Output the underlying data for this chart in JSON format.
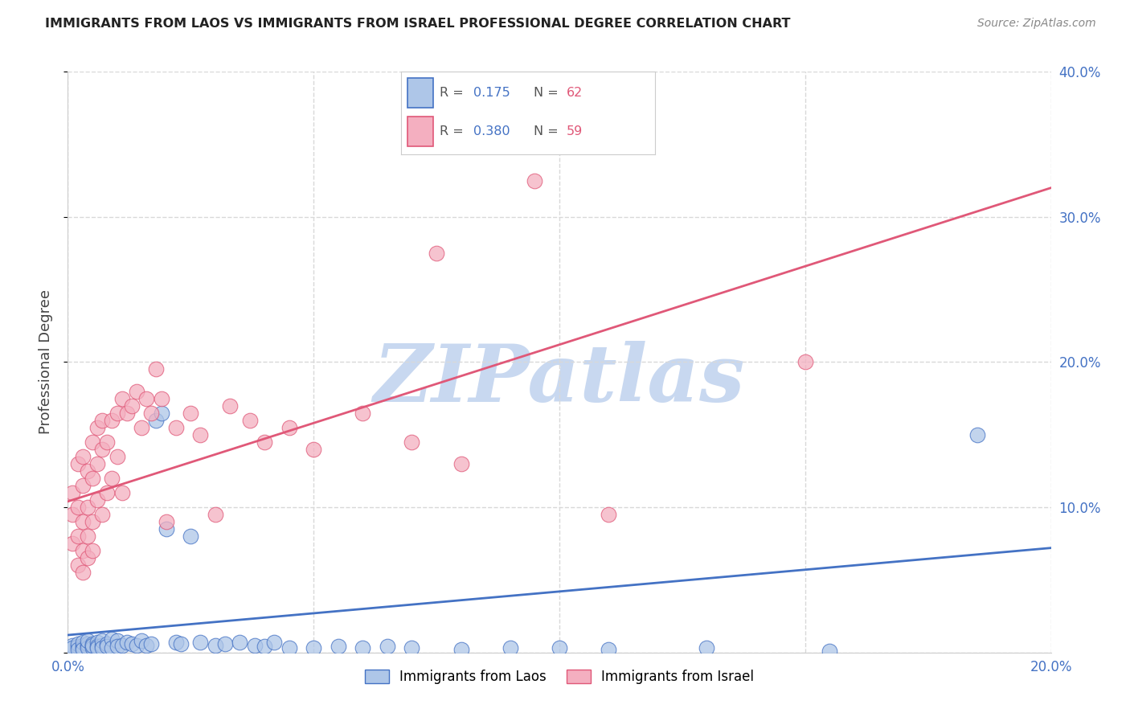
{
  "title": "IMMIGRANTS FROM LAOS VS IMMIGRANTS FROM ISRAEL PROFESSIONAL DEGREE CORRELATION CHART",
  "source": "Source: ZipAtlas.com",
  "ylabel": "Professional Degree",
  "xlim": [
    0.0,
    0.2
  ],
  "ylim": [
    0.0,
    0.4
  ],
  "background_color": "#ffffff",
  "grid_color": "#d8d8d8",
  "laos_fill_color": "#aec6e8",
  "laos_edge_color": "#4472c4",
  "israel_fill_color": "#f4afc0",
  "israel_edge_color": "#e05878",
  "laos_line_color": "#4472c4",
  "israel_line_color": "#e05878",
  "laos_R": 0.175,
  "laos_N": 62,
  "israel_R": 0.38,
  "israel_N": 59,
  "watermark": "ZIPatlas",
  "watermark_color": "#c8d8f0",
  "tick_color": "#4472c4",
  "title_color": "#222222",
  "source_color": "#888888",
  "ylabel_color": "#444444",
  "laos_scatter_x": [
    0.001,
    0.001,
    0.002,
    0.002,
    0.002,
    0.003,
    0.003,
    0.003,
    0.003,
    0.004,
    0.004,
    0.004,
    0.004,
    0.005,
    0.005,
    0.005,
    0.005,
    0.006,
    0.006,
    0.006,
    0.007,
    0.007,
    0.007,
    0.008,
    0.008,
    0.009,
    0.009,
    0.01,
    0.01,
    0.011,
    0.012,
    0.013,
    0.014,
    0.015,
    0.016,
    0.017,
    0.018,
    0.019,
    0.02,
    0.022,
    0.023,
    0.025,
    0.027,
    0.03,
    0.032,
    0.035,
    0.038,
    0.04,
    0.042,
    0.045,
    0.05,
    0.055,
    0.06,
    0.065,
    0.07,
    0.08,
    0.09,
    0.1,
    0.11,
    0.13,
    0.155,
    0.185
  ],
  "laos_scatter_y": [
    0.005,
    0.003,
    0.004,
    0.006,
    0.002,
    0.005,
    0.003,
    0.007,
    0.002,
    0.004,
    0.006,
    0.003,
    0.008,
    0.004,
    0.006,
    0.003,
    0.005,
    0.007,
    0.004,
    0.003,
    0.005,
    0.008,
    0.003,
    0.006,
    0.004,
    0.009,
    0.003,
    0.008,
    0.004,
    0.005,
    0.007,
    0.006,
    0.005,
    0.008,
    0.005,
    0.006,
    0.16,
    0.165,
    0.085,
    0.007,
    0.006,
    0.08,
    0.007,
    0.005,
    0.006,
    0.007,
    0.005,
    0.004,
    0.007,
    0.003,
    0.003,
    0.004,
    0.003,
    0.004,
    0.003,
    0.002,
    0.003,
    0.003,
    0.002,
    0.003,
    0.001,
    0.15
  ],
  "israel_scatter_x": [
    0.001,
    0.001,
    0.001,
    0.002,
    0.002,
    0.002,
    0.002,
    0.003,
    0.003,
    0.003,
    0.003,
    0.003,
    0.004,
    0.004,
    0.004,
    0.004,
    0.005,
    0.005,
    0.005,
    0.005,
    0.006,
    0.006,
    0.006,
    0.007,
    0.007,
    0.007,
    0.008,
    0.008,
    0.009,
    0.009,
    0.01,
    0.01,
    0.011,
    0.011,
    0.012,
    0.013,
    0.014,
    0.015,
    0.016,
    0.017,
    0.018,
    0.019,
    0.02,
    0.022,
    0.025,
    0.027,
    0.03,
    0.033,
    0.037,
    0.04,
    0.045,
    0.05,
    0.06,
    0.07,
    0.075,
    0.08,
    0.095,
    0.11,
    0.15
  ],
  "israel_scatter_y": [
    0.075,
    0.095,
    0.11,
    0.08,
    0.1,
    0.06,
    0.13,
    0.09,
    0.115,
    0.07,
    0.135,
    0.055,
    0.1,
    0.125,
    0.08,
    0.065,
    0.12,
    0.09,
    0.145,
    0.07,
    0.13,
    0.105,
    0.155,
    0.14,
    0.095,
    0.16,
    0.145,
    0.11,
    0.16,
    0.12,
    0.165,
    0.135,
    0.175,
    0.11,
    0.165,
    0.17,
    0.18,
    0.155,
    0.175,
    0.165,
    0.195,
    0.175,
    0.09,
    0.155,
    0.165,
    0.15,
    0.095,
    0.17,
    0.16,
    0.145,
    0.155,
    0.14,
    0.165,
    0.145,
    0.275,
    0.13,
    0.325,
    0.095,
    0.2
  ],
  "laos_trendline_x": [
    0.0,
    0.2
  ],
  "laos_trendline_y": [
    0.012,
    0.072
  ],
  "israel_trendline_x": [
    0.0,
    0.2
  ],
  "israel_trendline_y": [
    0.104,
    0.32
  ]
}
